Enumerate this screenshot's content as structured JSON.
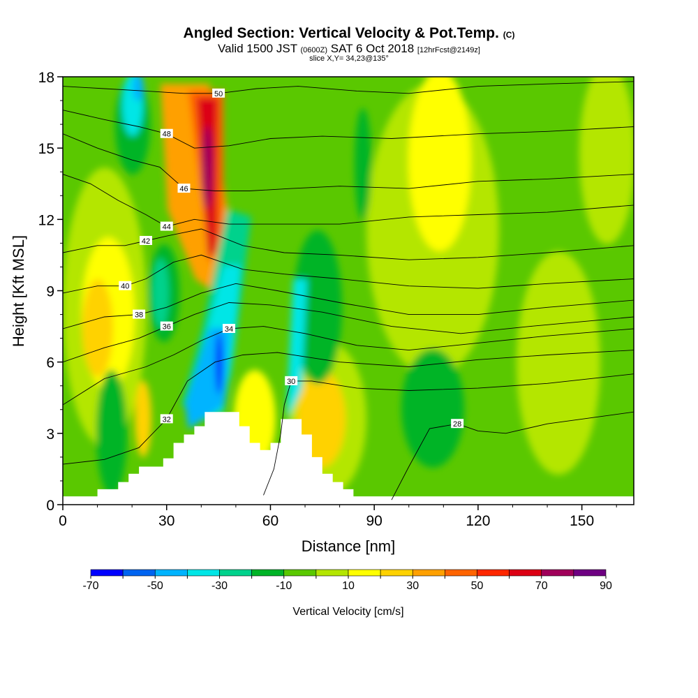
{
  "header": {
    "title": "Angled Section: Vertical Velocity & Pot.Temp.",
    "title_unit": "(C)",
    "subtitle_main": "Valid 1500 JST",
    "subtitle_z": "(0600Z)",
    "subtitle_date": "SAT 6 Oct 2018",
    "subtitle_fcst": "[12hrFcst@2149z]",
    "slice": "slice X,Y= 34,23@135°"
  },
  "chart_data": {
    "type": "heatmap",
    "title": "Angled Section: Vertical Velocity & Pot.Temp. (C)",
    "xlabel": "Distance [nm]",
    "ylabel": "Height [Kft MSL]",
    "xlim": [
      0,
      165
    ],
    "ylim": [
      0,
      18
    ],
    "x_ticks": [
      "0",
      "30",
      "60",
      "90",
      "120",
      "150"
    ],
    "y_ticks": [
      "0",
      "3",
      "6",
      "9",
      "12",
      "15",
      "18"
    ],
    "colorbar": {
      "title": "Vertical Velocity [cm/s]",
      "boundaries": [
        -70,
        -60,
        -50,
        -40,
        -30,
        -20,
        -10,
        0,
        10,
        20,
        30,
        40,
        50,
        60,
        70,
        80,
        90
      ],
      "labels": [
        "-70",
        "-50",
        "-30",
        "-10",
        "10",
        "30",
        "50",
        "70",
        "90"
      ],
      "colors": [
        "#0000ff",
        "#0064f0",
        "#00b4ff",
        "#00e6e6",
        "#00d28c",
        "#00b428",
        "#5ac800",
        "#b4e600",
        "#ffff00",
        "#ffd200",
        "#ffa000",
        "#ff6400",
        "#ff2800",
        "#dc0014",
        "#a0005a",
        "#6e0082"
      ]
    },
    "terrain": [
      [
        0,
        0.35
      ],
      [
        10,
        0.35
      ],
      [
        10,
        0.65
      ],
      [
        16,
        0.65
      ],
      [
        16,
        0.95
      ],
      [
        19,
        0.95
      ],
      [
        19,
        1.3
      ],
      [
        22,
        1.3
      ],
      [
        22,
        1.6
      ],
      [
        29,
        1.6
      ],
      [
        29,
        1.95
      ],
      [
        32,
        1.95
      ],
      [
        32,
        2.6
      ],
      [
        35,
        2.6
      ],
      [
        35,
        2.95
      ],
      [
        38,
        2.95
      ],
      [
        38,
        3.3
      ],
      [
        41,
        3.3
      ],
      [
        41,
        3.9
      ],
      [
        51,
        3.9
      ],
      [
        51,
        3.3
      ],
      [
        54,
        3.3
      ],
      [
        54,
        2.6
      ],
      [
        57,
        2.6
      ],
      [
        57,
        2.3
      ],
      [
        60,
        2.3
      ],
      [
        60,
        2.6
      ],
      [
        63,
        2.6
      ],
      [
        63,
        3.6
      ],
      [
        69,
        3.6
      ],
      [
        69,
        2.95
      ],
      [
        72,
        2.95
      ],
      [
        72,
        2.0
      ],
      [
        75,
        2.0
      ],
      [
        75,
        1.3
      ],
      [
        78,
        1.3
      ],
      [
        78,
        0.95
      ],
      [
        81,
        0.95
      ],
      [
        81,
        0.65
      ],
      [
        84,
        0.65
      ],
      [
        84,
        0.35
      ],
      [
        165,
        0.35
      ]
    ],
    "theta_contours": [
      {
        "level": "28",
        "points": [
          [
            95,
            0.2
          ],
          [
            100,
            1.6
          ],
          [
            106,
            3.2
          ],
          [
            114,
            3.4
          ],
          [
            120,
            3.1
          ],
          [
            128,
            3.0
          ],
          [
            140,
            3.4
          ],
          [
            165,
            3.9
          ]
        ]
      },
      {
        "level": "30",
        "points": [
          [
            58,
            0.4
          ],
          [
            61,
            1.5
          ],
          [
            63,
            3.0
          ],
          [
            64,
            4.2
          ],
          [
            66,
            5.2
          ],
          [
            72,
            5.2
          ],
          [
            85,
            4.9
          ],
          [
            100,
            4.8
          ],
          [
            120,
            4.9
          ],
          [
            140,
            5.1
          ],
          [
            165,
            5.5
          ]
        ]
      },
      {
        "level": "32",
        "points": [
          [
            0,
            1.7
          ],
          [
            12,
            1.9
          ],
          [
            22,
            2.4
          ],
          [
            30,
            3.6
          ],
          [
            36,
            5.2
          ],
          [
            44,
            6.0
          ],
          [
            52,
            6.3
          ],
          [
            62,
            6.4
          ],
          [
            80,
            6.0
          ],
          [
            100,
            5.8
          ],
          [
            120,
            6.1
          ],
          [
            140,
            6.3
          ],
          [
            165,
            6.5
          ]
        ]
      },
      {
        "level": "34",
        "points": [
          [
            0,
            4.2
          ],
          [
            12,
            5.3
          ],
          [
            24,
            5.8
          ],
          [
            32,
            6.3
          ],
          [
            40,
            6.9
          ],
          [
            48,
            7.4
          ],
          [
            58,
            7.5
          ],
          [
            70,
            7.2
          ],
          [
            85,
            6.7
          ],
          [
            100,
            6.5
          ],
          [
            120,
            6.8
          ],
          [
            140,
            7.1
          ],
          [
            165,
            7.4
          ]
        ]
      },
      {
        "level": "36",
        "points": [
          [
            0,
            6.0
          ],
          [
            12,
            6.6
          ],
          [
            22,
            7.0
          ],
          [
            30,
            7.5
          ],
          [
            38,
            8.0
          ],
          [
            48,
            8.5
          ],
          [
            60,
            8.4
          ],
          [
            75,
            8.1
          ],
          [
            95,
            7.5
          ],
          [
            115,
            7.2
          ],
          [
            135,
            7.5
          ],
          [
            165,
            7.9
          ]
        ]
      },
      {
        "level": "38",
        "points": [
          [
            0,
            7.4
          ],
          [
            12,
            7.9
          ],
          [
            22,
            8.0
          ],
          [
            30,
            8.3
          ],
          [
            40,
            8.9
          ],
          [
            50,
            9.3
          ],
          [
            62,
            9.0
          ],
          [
            80,
            8.5
          ],
          [
            100,
            8.0
          ],
          [
            120,
            8.0
          ],
          [
            140,
            8.3
          ],
          [
            165,
            8.6
          ]
        ]
      },
      {
        "level": "40",
        "points": [
          [
            0,
            8.9
          ],
          [
            10,
            9.2
          ],
          [
            18,
            9.2
          ],
          [
            24,
            9.5
          ],
          [
            32,
            10.2
          ],
          [
            40,
            10.5
          ],
          [
            52,
            9.9
          ],
          [
            64,
            9.7
          ],
          [
            80,
            9.5
          ],
          [
            100,
            9.2
          ],
          [
            120,
            9.1
          ],
          [
            140,
            9.3
          ],
          [
            165,
            9.5
          ]
        ]
      },
      {
        "level": "42",
        "points": [
          [
            0,
            10.6
          ],
          [
            10,
            10.9
          ],
          [
            18,
            10.9
          ],
          [
            24,
            11.1
          ],
          [
            30,
            11.3
          ],
          [
            40,
            11.6
          ],
          [
            52,
            10.9
          ],
          [
            64,
            10.6
          ],
          [
            80,
            10.5
          ],
          [
            100,
            10.3
          ],
          [
            120,
            10.4
          ],
          [
            140,
            10.6
          ],
          [
            165,
            10.9
          ]
        ]
      },
      {
        "level": "44",
        "points": [
          [
            0,
            13.9
          ],
          [
            8,
            13.5
          ],
          [
            16,
            12.8
          ],
          [
            24,
            12.2
          ],
          [
            30,
            11.7
          ],
          [
            38,
            12.0
          ],
          [
            48,
            11.8
          ],
          [
            60,
            11.8
          ],
          [
            80,
            11.8
          ],
          [
            100,
            12.1
          ],
          [
            120,
            12.2
          ],
          [
            140,
            12.3
          ],
          [
            165,
            12.6
          ]
        ]
      },
      {
        "level": "46",
        "points": [
          [
            0,
            15.6
          ],
          [
            10,
            15.0
          ],
          [
            20,
            14.5
          ],
          [
            28,
            14.2
          ],
          [
            35,
            13.3
          ],
          [
            44,
            13.2
          ],
          [
            54,
            13.2
          ],
          [
            66,
            13.3
          ],
          [
            80,
            13.4
          ],
          [
            100,
            13.3
          ],
          [
            120,
            13.6
          ],
          [
            140,
            13.7
          ],
          [
            165,
            13.9
          ]
        ]
      },
      {
        "level": "48",
        "points": [
          [
            0,
            16.6
          ],
          [
            12,
            16.2
          ],
          [
            22,
            15.9
          ],
          [
            30,
            15.6
          ],
          [
            38,
            15.0
          ],
          [
            48,
            15.1
          ],
          [
            60,
            15.4
          ],
          [
            75,
            15.5
          ],
          [
            95,
            15.4
          ],
          [
            120,
            15.6
          ],
          [
            140,
            15.7
          ],
          [
            165,
            15.9
          ]
        ]
      },
      {
        "level": "50",
        "points": [
          [
            0,
            17.6
          ],
          [
            12,
            17.5
          ],
          [
            24,
            17.4
          ],
          [
            35,
            17.3
          ],
          [
            45,
            17.3
          ],
          [
            56,
            17.5
          ],
          [
            68,
            17.6
          ],
          [
            85,
            17.4
          ],
          [
            100,
            17.3
          ],
          [
            120,
            17.6
          ],
          [
            140,
            17.7
          ],
          [
            165,
            17.8
          ]
        ]
      }
    ]
  }
}
